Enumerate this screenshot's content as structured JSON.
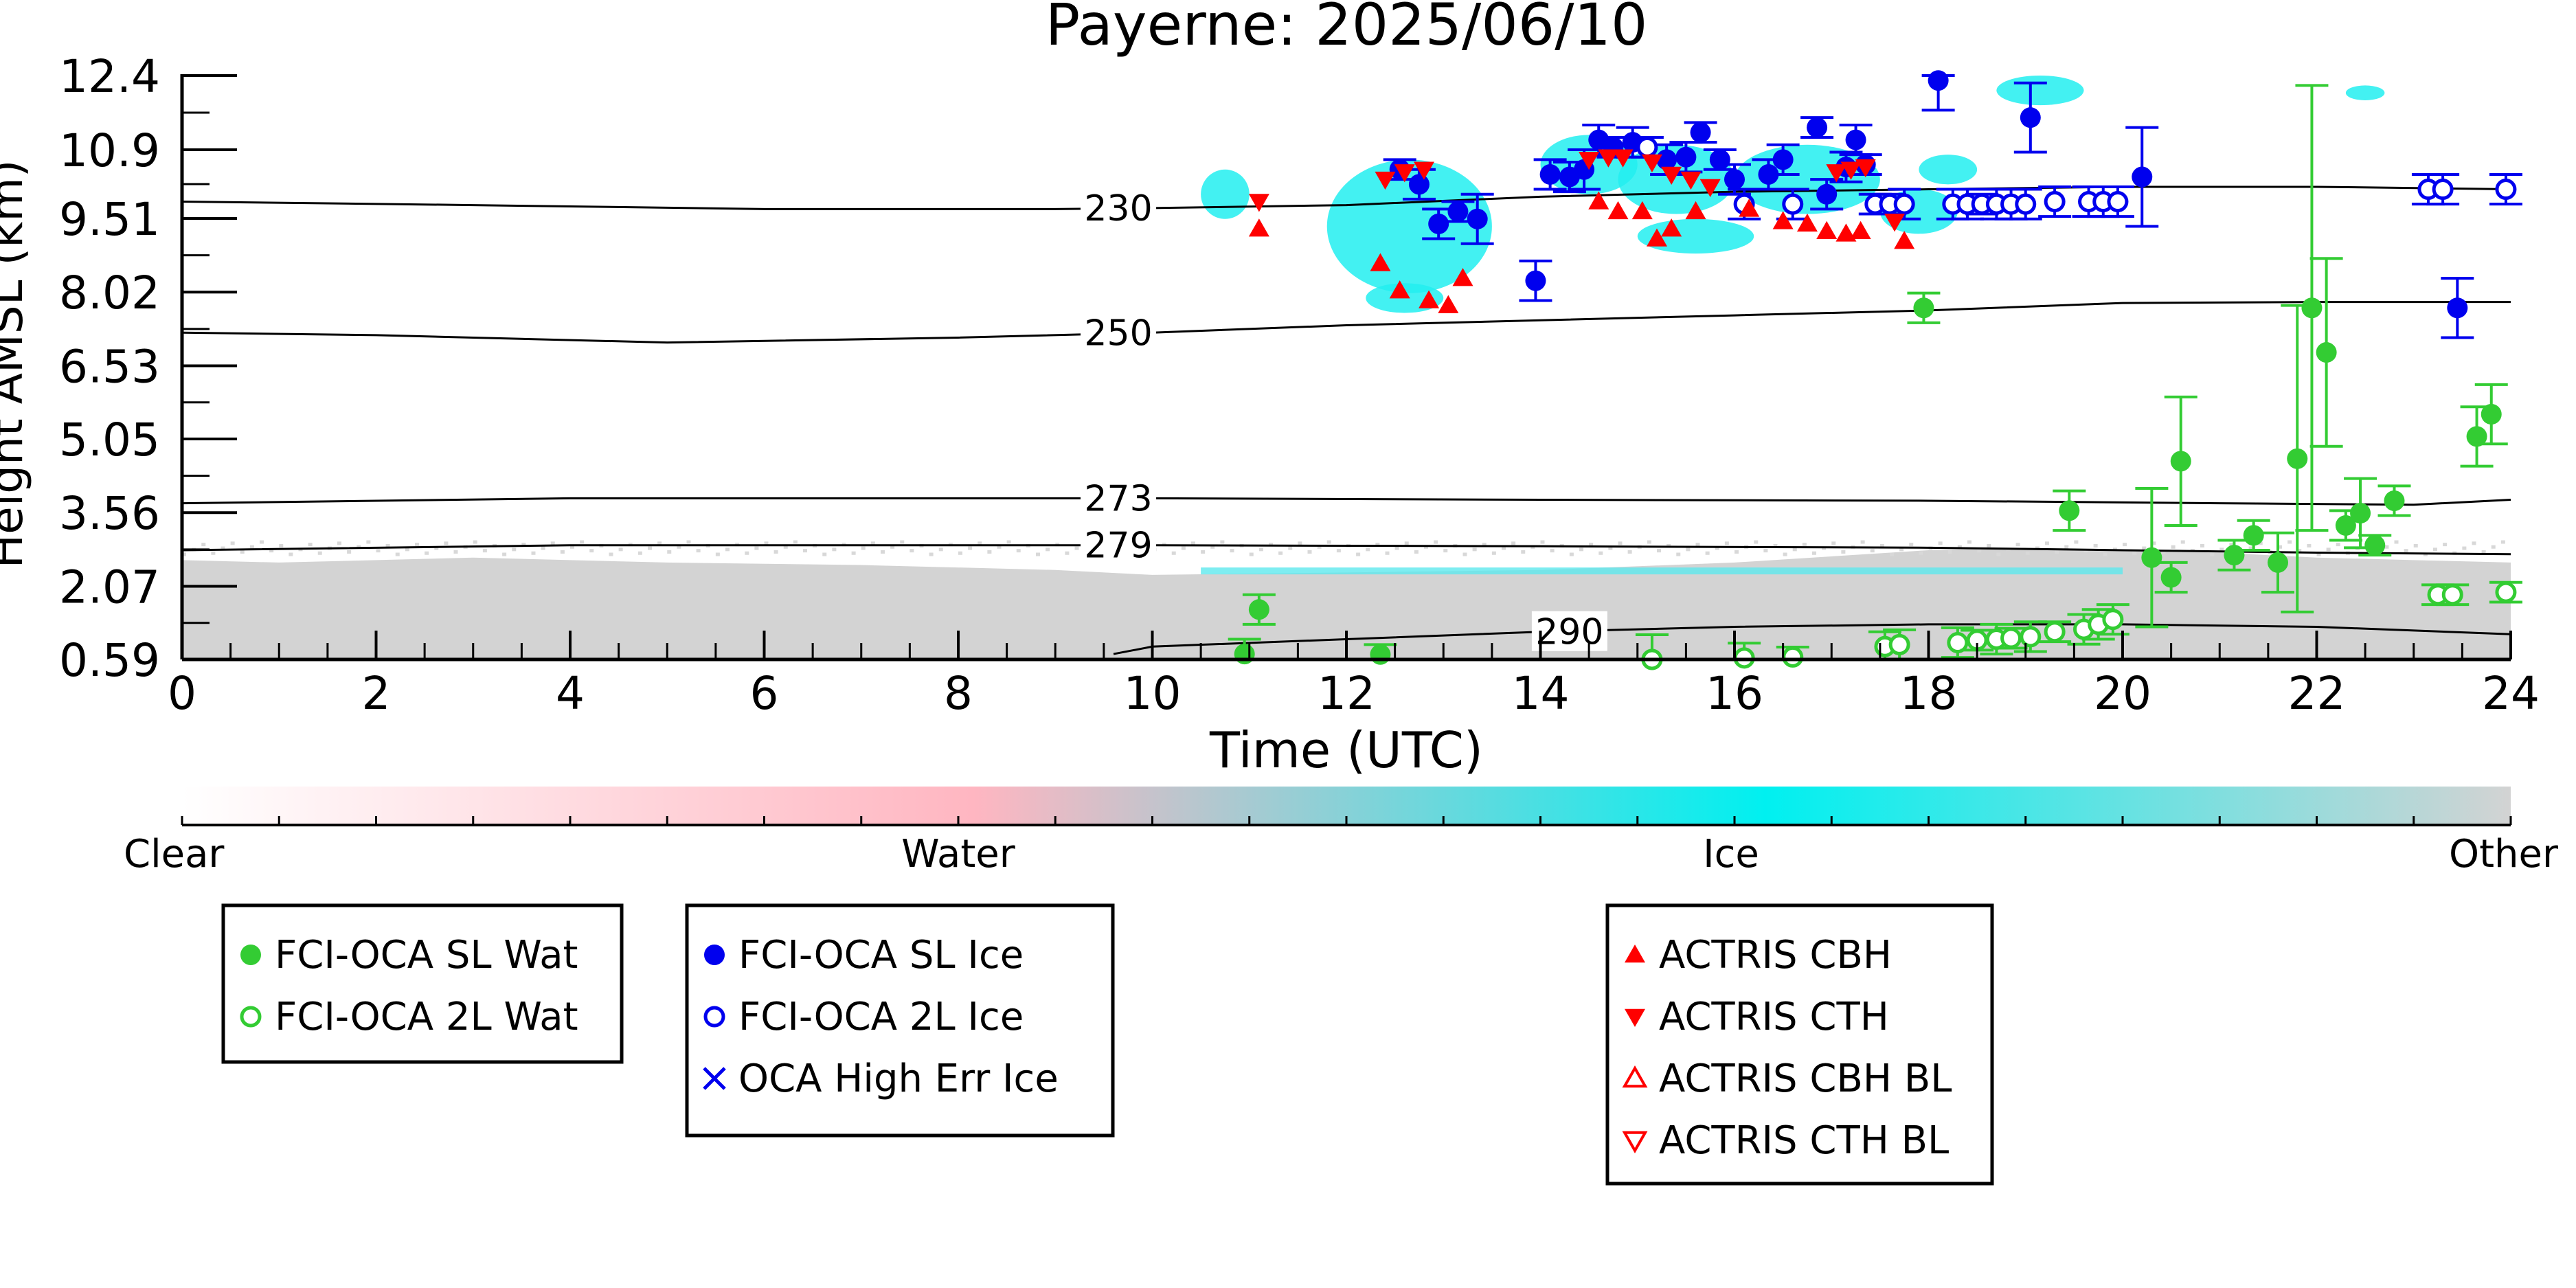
{
  "chart_data": {
    "type": "scatter",
    "title": "Payerne: 2025/06/10",
    "xlabel": "Time (UTC)",
    "ylabel": "Height AMSL (km)",
    "xlim": [
      0,
      24
    ],
    "ylim": [
      0.59,
      12.4
    ],
    "x_ticks": [
      0,
      2,
      4,
      6,
      8,
      10,
      12,
      14,
      16,
      18,
      20,
      22,
      24
    ],
    "y_ticks": [
      0.59,
      2.07,
      3.56,
      5.05,
      6.53,
      8.02,
      9.51,
      10.9,
      12.4
    ],
    "y_tick_labels": [
      "0.59",
      "2.07",
      "3.56",
      "5.05",
      "6.53",
      "8.02",
      "9.51",
      "10.9",
      "12.4"
    ],
    "colorbar": {
      "labels": [
        "Clear",
        "Water",
        "Ice",
        "Other"
      ],
      "colors": [
        "#ffffff",
        "#ffb6c1",
        "#00f0f0",
        "#d3d3d3"
      ]
    },
    "contours": [
      {
        "label": "230",
        "points": [
          [
            0,
            9.85
          ],
          [
            3,
            9.78
          ],
          [
            6,
            9.7
          ],
          [
            9,
            9.7
          ],
          [
            10,
            9.72
          ],
          [
            12,
            9.78
          ],
          [
            14,
            9.95
          ],
          [
            16,
            10.05
          ],
          [
            18,
            10.1
          ],
          [
            20,
            10.15
          ],
          [
            22,
            10.15
          ],
          [
            24,
            10.1
          ]
        ]
      },
      {
        "label": "250",
        "points": [
          [
            0,
            7.2
          ],
          [
            2,
            7.15
          ],
          [
            5,
            7.0
          ],
          [
            8,
            7.1
          ],
          [
            10,
            7.2
          ],
          [
            12,
            7.35
          ],
          [
            14,
            7.45
          ],
          [
            16,
            7.55
          ],
          [
            18,
            7.65
          ],
          [
            20,
            7.8
          ],
          [
            22,
            7.82
          ],
          [
            24,
            7.82
          ]
        ]
      },
      {
        "label": "273",
        "points": [
          [
            0,
            3.75
          ],
          [
            2,
            3.8
          ],
          [
            4,
            3.85
          ],
          [
            8,
            3.85
          ],
          [
            10,
            3.85
          ],
          [
            14,
            3.82
          ],
          [
            18,
            3.8
          ],
          [
            21,
            3.75
          ],
          [
            23,
            3.72
          ],
          [
            24,
            3.82
          ]
        ]
      },
      {
        "label": "279",
        "points": [
          [
            0,
            2.8
          ],
          [
            4,
            2.9
          ],
          [
            8,
            2.9
          ],
          [
            10,
            2.9
          ],
          [
            14,
            2.88
          ],
          [
            18,
            2.85
          ],
          [
            20,
            2.8
          ],
          [
            22,
            2.75
          ],
          [
            24,
            2.72
          ]
        ]
      },
      {
        "label": "290",
        "points": [
          [
            9.6,
            0.7
          ],
          [
            10,
            0.85
          ],
          [
            12,
            1.0
          ],
          [
            14,
            1.15
          ],
          [
            16,
            1.25
          ],
          [
            18,
            1.3
          ],
          [
            20,
            1.3
          ],
          [
            22,
            1.25
          ],
          [
            24,
            1.1
          ]
        ]
      }
    ],
    "series": [
      {
        "name": "FCI-OCA SL Wat",
        "color": "#33cc33",
        "marker": "filled-circle",
        "points": [
          [
            11.1,
            1.6,
            0.3
          ],
          [
            10.95,
            0.7,
            0.3
          ],
          [
            12.35,
            0.69,
            0.2
          ],
          [
            17.95,
            7.7,
            0.3
          ],
          [
            19.45,
            3.6,
            0.4
          ],
          [
            20.3,
            2.65,
            1.4
          ],
          [
            20.6,
            4.6,
            1.3
          ],
          [
            20.5,
            2.25,
            0.3
          ],
          [
            21.15,
            2.7,
            0.3
          ],
          [
            21.35,
            3.1,
            0.3
          ],
          [
            21.6,
            2.55,
            0.6
          ],
          [
            21.8,
            4.65,
            3.1
          ],
          [
            21.95,
            7.7,
            4.5
          ],
          [
            22.1,
            6.8,
            1.9
          ],
          [
            22.3,
            3.3,
            0.3
          ],
          [
            22.45,
            3.55,
            0.7
          ],
          [
            22.6,
            2.9,
            0.2
          ],
          [
            22.8,
            3.8,
            0.3
          ],
          [
            23.65,
            5.1,
            0.6
          ],
          [
            23.8,
            5.55,
            0.6
          ]
        ]
      },
      {
        "name": "FCI-OCA 2L Wat",
        "color": "#33cc33",
        "marker": "open-circle",
        "points": [
          [
            15.15,
            0.59,
            0.5
          ],
          [
            16.1,
            0.62,
            0.3
          ],
          [
            16.6,
            0.64,
            0.2
          ],
          [
            17.55,
            0.85,
            0.3
          ],
          [
            17.7,
            0.89,
            0.3
          ],
          [
            18.3,
            0.93,
            0.3
          ],
          [
            18.5,
            0.98,
            0.2
          ],
          [
            18.7,
            1.0,
            0.3
          ],
          [
            18.85,
            1.02,
            0.2
          ],
          [
            19.05,
            1.05,
            0.3
          ],
          [
            19.3,
            1.15,
            0.2
          ],
          [
            19.6,
            1.2,
            0.3
          ],
          [
            19.75,
            1.3,
            0.3
          ],
          [
            19.9,
            1.4,
            0.3
          ],
          [
            23.25,
            1.9,
            0.2
          ],
          [
            23.4,
            1.9,
            0.2
          ],
          [
            23.95,
            1.95,
            0.2
          ]
        ]
      },
      {
        "name": "FCI-OCA SL Ice",
        "color": "#0000ee",
        "marker": "filled-circle",
        "points": [
          [
            12.55,
            10.5,
            0.2
          ],
          [
            12.75,
            10.2,
            0.3
          ],
          [
            12.95,
            9.4,
            0.3
          ],
          [
            13.15,
            9.65,
            0.2
          ],
          [
            13.35,
            9.5,
            0.5
          ],
          [
            13.95,
            8.25,
            0.4
          ],
          [
            14.1,
            10.4,
            0.3
          ],
          [
            14.3,
            10.35,
            0.3
          ],
          [
            14.45,
            10.5,
            0.4
          ],
          [
            14.6,
            11.1,
            0.3
          ],
          [
            14.75,
            10.95,
            0.2
          ],
          [
            14.95,
            11.05,
            0.3
          ],
          [
            15.3,
            10.7,
            0.3
          ],
          [
            15.5,
            10.75,
            0.3
          ],
          [
            15.65,
            11.25,
            0.2
          ],
          [
            15.85,
            10.7,
            0.2
          ],
          [
            16.0,
            10.3,
            0.3
          ],
          [
            16.35,
            10.4,
            0.3
          ],
          [
            16.5,
            10.7,
            0.3
          ],
          [
            16.85,
            11.35,
            0.2
          ],
          [
            16.95,
            10.0,
            0.3
          ],
          [
            17.15,
            10.55,
            0.3
          ],
          [
            17.25,
            11.1,
            0.3
          ],
          [
            17.35,
            10.6,
            0.2
          ],
          [
            18.1,
            12.3,
            0.6
          ],
          [
            19.05,
            11.55,
            0.7
          ],
          [
            20.2,
            10.35,
            1.0
          ],
          [
            23.45,
            7.7,
            0.6
          ]
        ]
      },
      {
        "name": "FCI-OCA 2L Ice",
        "color": "#0000ee",
        "marker": "open-circle",
        "points": [
          [
            15.1,
            10.95,
            0.2
          ],
          [
            16.1,
            9.8,
            0.3
          ],
          [
            16.6,
            9.8,
            0.3
          ],
          [
            17.45,
            9.8,
            0.2
          ],
          [
            17.6,
            9.8,
            0.2
          ],
          [
            17.75,
            9.8,
            0.3
          ],
          [
            18.25,
            9.8,
            0.3
          ],
          [
            18.4,
            9.8,
            0.3
          ],
          [
            18.55,
            9.8,
            0.2
          ],
          [
            18.7,
            9.8,
            0.3
          ],
          [
            18.85,
            9.8,
            0.3
          ],
          [
            19.0,
            9.8,
            0.3
          ],
          [
            19.3,
            9.85,
            0.3
          ],
          [
            19.65,
            9.85,
            0.3
          ],
          [
            19.8,
            9.85,
            0.3
          ],
          [
            19.95,
            9.85,
            0.3
          ],
          [
            23.15,
            10.1,
            0.3
          ],
          [
            23.3,
            10.1,
            0.3
          ],
          [
            23.95,
            10.1,
            0.3
          ]
        ]
      },
      {
        "name": "OCA High Err Ice",
        "color": "#0000ee",
        "marker": "x",
        "points": []
      },
      {
        "name": "ACTRIS CBH",
        "color": "#ff0000",
        "marker": "triangle-up",
        "points": [
          [
            11.1,
            9.3
          ],
          [
            12.35,
            8.6
          ],
          [
            12.55,
            8.05
          ],
          [
            12.85,
            7.85
          ],
          [
            13.05,
            7.75
          ],
          [
            13.2,
            8.3
          ],
          [
            14.6,
            9.85
          ],
          [
            14.8,
            9.65
          ],
          [
            15.05,
            9.65
          ],
          [
            15.2,
            9.1
          ],
          [
            15.35,
            9.3
          ],
          [
            15.6,
            9.65
          ],
          [
            16.15,
            9.7
          ],
          [
            16.5,
            9.45
          ],
          [
            16.75,
            9.4
          ],
          [
            16.95,
            9.25
          ],
          [
            17.15,
            9.2
          ],
          [
            17.3,
            9.25
          ],
          [
            17.75,
            9.05
          ]
        ]
      },
      {
        "name": "ACTRIS CTH",
        "color": "#ff0000",
        "marker": "triangle-down",
        "points": [
          [
            11.1,
            9.85
          ],
          [
            12.4,
            10.3
          ],
          [
            12.6,
            10.45
          ],
          [
            12.8,
            10.5
          ],
          [
            14.5,
            10.7
          ],
          [
            14.7,
            10.75
          ],
          [
            14.85,
            10.75
          ],
          [
            15.15,
            10.65
          ],
          [
            15.35,
            10.4
          ],
          [
            15.55,
            10.3
          ],
          [
            15.75,
            10.15
          ],
          [
            17.05,
            10.45
          ],
          [
            17.2,
            10.5
          ],
          [
            17.35,
            10.55
          ],
          [
            17.65,
            9.45
          ]
        ]
      },
      {
        "name": "ACTRIS CBH BL",
        "color": "#ff0000",
        "marker": "open-triangle-up",
        "points": []
      },
      {
        "name": "ACTRIS CTH BL",
        "color": "#ff0000",
        "marker": "open-triangle-down",
        "points": []
      }
    ],
    "legend_groups": [
      [
        "FCI-OCA SL Wat",
        "FCI-OCA 2L Wat"
      ],
      [
        "FCI-OCA SL Ice",
        "FCI-OCA 2L Ice",
        "OCA High Err Ice"
      ],
      [
        "ACTRIS CBH",
        "ACTRIS CTH",
        "ACTRIS CBH BL",
        "ACTRIS CTH BL"
      ]
    ],
    "legend_placement": "bottom",
    "grid": false
  }
}
